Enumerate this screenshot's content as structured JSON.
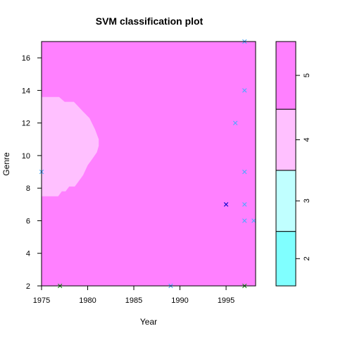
{
  "chart_data": {
    "type": "heatmap",
    "title": "SVM classification plot",
    "xlabel": "Year",
    "ylabel": "Genre",
    "xlim": [
      1975,
      1998.2
    ],
    "ylim": [
      2,
      17
    ],
    "x_ticks": [
      1975,
      1980,
      1985,
      1990,
      1995
    ],
    "y_ticks": [
      2,
      4,
      6,
      8,
      10,
      12,
      14,
      16
    ],
    "grid": false,
    "background_class": 5,
    "regions": [
      {
        "class": 4,
        "polygon": [
          [
            1975,
            7.5
          ],
          [
            1976.8,
            7.5
          ],
          [
            1977.2,
            7.8
          ],
          [
            1977.6,
            7.8
          ],
          [
            1978.0,
            8.1
          ],
          [
            1978.6,
            8.1
          ],
          [
            1979.0,
            8.4
          ],
          [
            1979.5,
            8.8
          ],
          [
            1980.0,
            9.4
          ],
          [
            1980.5,
            9.8
          ],
          [
            1981.0,
            10.2
          ],
          [
            1981.2,
            10.6
          ],
          [
            1981.2,
            11.0
          ],
          [
            1980.8,
            11.6
          ],
          [
            1980.2,
            12.3
          ],
          [
            1979.5,
            12.7
          ],
          [
            1979.0,
            13.0
          ],
          [
            1978.5,
            13.3
          ],
          [
            1977.5,
            13.3
          ],
          [
            1976.9,
            13.6
          ],
          [
            1975,
            13.6
          ]
        ]
      }
    ],
    "support_vectors": [
      {
        "x": 1997,
        "y": 17,
        "class": 3
      },
      {
        "x": 1997,
        "y": 14,
        "class": 3
      },
      {
        "x": 1996,
        "y": 12,
        "class": 3
      },
      {
        "x": 1997,
        "y": 9,
        "class": 3
      },
      {
        "x": 1975,
        "y": 9,
        "class": 3
      },
      {
        "x": 1997,
        "y": 7,
        "class": 3
      },
      {
        "x": 1997,
        "y": 6,
        "class": 3
      },
      {
        "x": 1998,
        "y": 6,
        "class": 3
      },
      {
        "x": 1995,
        "y": 7,
        "class": 2
      },
      {
        "x": 1977,
        "y": 2,
        "class": 4
      },
      {
        "x": 1989,
        "y": 2,
        "class": 3
      },
      {
        "x": 1997,
        "y": 2,
        "class": 4
      }
    ],
    "legend": {
      "placement": "right",
      "classes": [
        {
          "label": "2",
          "color": "#80FFFF"
        },
        {
          "label": "3",
          "color": "#C0FFFF"
        },
        {
          "label": "4",
          "color": "#FFC0FF"
        },
        {
          "label": "5",
          "color": "#FF80FF"
        }
      ],
      "fractions": [
        0.223,
        0.25,
        0.25,
        0.277
      ]
    },
    "point_colors": {
      "2": "#0000CD",
      "3": "#4FA8FF",
      "4": "#228B22"
    },
    "marker": "x"
  }
}
